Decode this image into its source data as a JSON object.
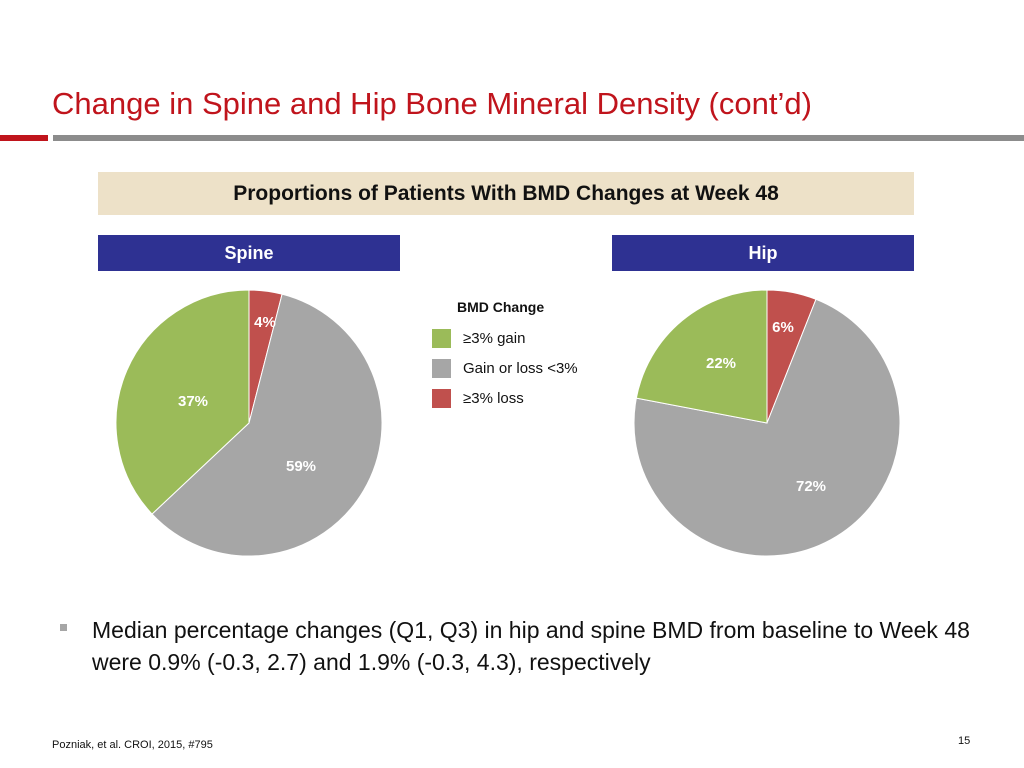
{
  "slide": {
    "title": "Change in Spine and Hip Bone Mineral Density (cont’d)",
    "banner": "Proportions of Patients With BMD Changes at Week 48",
    "bullet": "Median percentage changes (Q1, Q3) in hip and spine BMD from baseline to Week 48 were 0.9% (-0.3, 2.7) and 1.9% (-0.3, 4.3), respectively",
    "footer": "Pozniak, et al. CROI, 2015, #795",
    "page_number": "15"
  },
  "legend": {
    "title": "BMD Change",
    "items": [
      {
        "label": "≥3% gain",
        "color": "#9bbb59"
      },
      {
        "label": "Gain or loss <3%",
        "color": "#a6a6a6"
      },
      {
        "label": "≥3% loss",
        "color": "#c0504d"
      }
    ]
  },
  "colors": {
    "title": "#c0141c",
    "panel_header": "#2e3192",
    "banner_bg": "#ede1c8"
  },
  "chart_data": [
    {
      "type": "pie",
      "title": "Spine",
      "categories": [
        "≥3% loss",
        "Gain or loss <3%",
        "≥3% gain"
      ],
      "values": [
        4,
        59,
        37
      ],
      "labels": [
        "4%",
        "59%",
        "37%"
      ],
      "colors": [
        "#c0504d",
        "#a6a6a6",
        "#9bbb59"
      ]
    },
    {
      "type": "pie",
      "title": "Hip",
      "categories": [
        "≥3% loss",
        "Gain or loss <3%",
        "≥3% gain"
      ],
      "values": [
        6,
        72,
        22
      ],
      "labels": [
        "6%",
        "72%",
        "22%"
      ],
      "colors": [
        "#c0504d",
        "#a6a6a6",
        "#9bbb59"
      ]
    }
  ]
}
